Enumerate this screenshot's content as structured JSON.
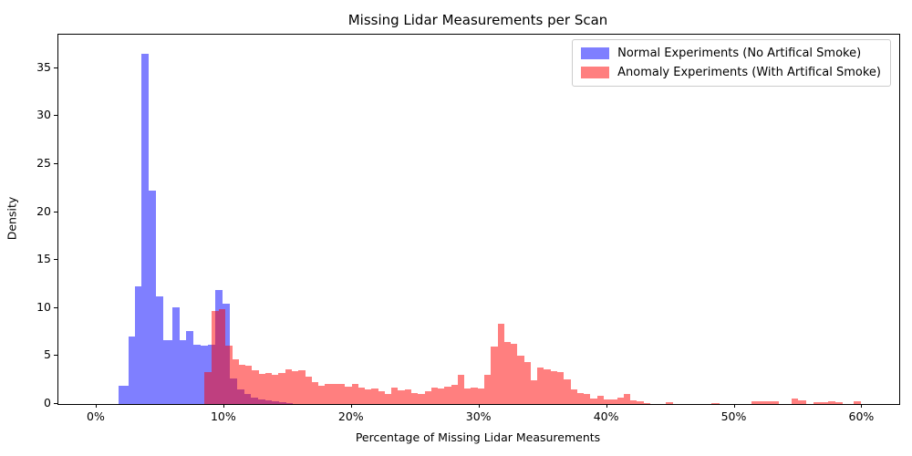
{
  "chart_data": {
    "type": "histogram",
    "title": "Missing Lidar Measurements per Scan",
    "xlabel": "Percentage of Missing Lidar Measurements",
    "ylabel": "Density",
    "xlim": [
      -3.0,
      62.9
    ],
    "ylim": [
      0,
      38.5
    ],
    "grid": false,
    "legend_position": "upper right",
    "x_ticks": [
      {
        "value": 0,
        "label": "0%"
      },
      {
        "value": 10,
        "label": "10%"
      },
      {
        "value": 20,
        "label": "20%"
      },
      {
        "value": 30,
        "label": "30%"
      },
      {
        "value": 40,
        "label": "40%"
      },
      {
        "value": 50,
        "label": "50%"
      },
      {
        "value": 60,
        "label": "60%"
      }
    ],
    "y_ticks": [
      0,
      5,
      10,
      15,
      20,
      25,
      30,
      35
    ],
    "series": [
      {
        "name": "Normal Experiments (No Artifical Smoke)",
        "color": "rgba(0,0,255,0.5)",
        "solid_color": "#8080f9",
        "bars": [
          [
            1.7,
            2.5,
            1.9
          ],
          [
            2.5,
            3.0,
            7.0
          ],
          [
            3.0,
            3.52,
            12.3
          ],
          [
            3.52,
            4.1,
            36.5
          ],
          [
            4.1,
            4.65,
            22.2
          ],
          [
            4.65,
            5.2,
            11.2
          ],
          [
            5.2,
            5.95,
            6.7
          ],
          [
            5.95,
            6.5,
            10.1
          ],
          [
            6.5,
            7.0,
            6.7
          ],
          [
            7.0,
            7.6,
            7.6
          ],
          [
            7.6,
            8.15,
            6.2
          ],
          [
            8.15,
            8.7,
            6.1
          ],
          [
            8.7,
            9.3,
            6.2
          ],
          [
            9.3,
            9.88,
            11.9
          ],
          [
            9.88,
            10.45,
            10.5
          ],
          [
            10.45,
            11.0,
            2.7
          ],
          [
            11.0,
            11.55,
            1.5
          ],
          [
            11.55,
            12.1,
            1.0
          ],
          [
            12.1,
            12.65,
            0.7
          ],
          [
            12.65,
            13.2,
            0.5
          ],
          [
            13.2,
            13.75,
            0.35
          ],
          [
            13.75,
            14.3,
            0.25
          ],
          [
            14.3,
            14.85,
            0.15
          ],
          [
            14.85,
            15.4,
            0.1
          ]
        ]
      },
      {
        "name": "Anomaly Experiments (With Artifical Smoke)",
        "color": "rgba(255,0,0,0.5)",
        "solid_color": "#fa8080",
        "bars": [
          [
            8.45,
            9.0,
            3.3
          ],
          [
            9.0,
            9.55,
            9.7
          ],
          [
            9.55,
            10.1,
            9.9
          ],
          [
            10.1,
            10.62,
            6.1
          ],
          [
            10.62,
            11.14,
            4.65
          ],
          [
            11.14,
            11.66,
            4.1
          ],
          [
            11.66,
            12.18,
            4.0
          ],
          [
            12.18,
            12.7,
            3.5
          ],
          [
            12.7,
            13.22,
            3.1
          ],
          [
            13.22,
            13.74,
            3.2
          ],
          [
            13.74,
            14.26,
            3.0
          ],
          [
            14.26,
            14.78,
            3.2
          ],
          [
            14.78,
            15.3,
            3.6
          ],
          [
            15.3,
            15.82,
            3.4
          ],
          [
            15.82,
            16.34,
            3.5
          ],
          [
            16.34,
            16.86,
            2.9
          ],
          [
            16.86,
            17.38,
            2.3
          ],
          [
            17.38,
            17.9,
            1.9
          ],
          [
            17.9,
            18.42,
            2.1
          ],
          [
            18.42,
            18.94,
            2.05
          ],
          [
            18.94,
            19.46,
            2.1
          ],
          [
            19.46,
            19.98,
            1.8
          ],
          [
            19.98,
            20.5,
            2.05
          ],
          [
            20.5,
            21.02,
            1.75
          ],
          [
            21.02,
            21.54,
            1.5
          ],
          [
            21.54,
            22.06,
            1.6
          ],
          [
            22.06,
            22.58,
            1.3
          ],
          [
            22.58,
            23.1,
            1.0
          ],
          [
            23.1,
            23.62,
            1.7
          ],
          [
            23.62,
            24.14,
            1.4
          ],
          [
            24.14,
            24.66,
            1.5
          ],
          [
            24.66,
            25.18,
            1.1
          ],
          [
            25.18,
            25.7,
            1.0
          ],
          [
            25.7,
            26.22,
            1.3
          ],
          [
            26.22,
            26.74,
            1.7
          ],
          [
            26.74,
            27.26,
            1.6
          ],
          [
            27.26,
            27.78,
            1.8
          ],
          [
            27.78,
            28.3,
            2.0
          ],
          [
            28.3,
            28.82,
            3.0
          ],
          [
            28.82,
            29.34,
            1.6
          ],
          [
            29.34,
            29.86,
            1.75
          ],
          [
            29.86,
            30.38,
            1.6
          ],
          [
            30.38,
            30.9,
            3.0
          ],
          [
            30.9,
            31.42,
            6.0
          ],
          [
            31.42,
            31.94,
            8.35
          ],
          [
            31.94,
            32.46,
            6.45
          ],
          [
            32.46,
            32.98,
            6.3
          ],
          [
            32.98,
            33.5,
            5.0
          ],
          [
            33.5,
            34.02,
            4.4
          ],
          [
            34.02,
            34.54,
            2.45
          ],
          [
            34.54,
            35.06,
            3.8
          ],
          [
            35.06,
            35.58,
            3.6
          ],
          [
            35.58,
            36.1,
            3.45
          ],
          [
            36.1,
            36.62,
            3.3
          ],
          [
            36.62,
            37.14,
            2.55
          ],
          [
            37.14,
            37.66,
            1.5
          ],
          [
            37.66,
            38.18,
            1.1
          ],
          [
            38.18,
            38.7,
            1.0
          ],
          [
            38.7,
            39.22,
            0.6
          ],
          [
            39.22,
            39.74,
            0.9
          ],
          [
            39.74,
            40.26,
            0.5
          ],
          [
            40.26,
            40.78,
            0.45
          ],
          [
            40.78,
            41.3,
            0.7
          ],
          [
            41.3,
            41.82,
            1.0
          ],
          [
            41.82,
            42.34,
            0.4
          ],
          [
            42.34,
            42.86,
            0.25
          ],
          [
            42.86,
            43.38,
            0.1
          ],
          [
            44.6,
            45.2,
            0.15
          ],
          [
            48.2,
            48.8,
            0.1
          ],
          [
            51.3,
            51.85,
            0.25
          ],
          [
            51.85,
            52.4,
            0.33
          ],
          [
            52.4,
            52.95,
            0.33
          ],
          [
            52.95,
            53.5,
            0.25
          ],
          [
            54.45,
            55.0,
            0.55
          ],
          [
            55.0,
            55.6,
            0.35
          ],
          [
            56.2,
            56.75,
            0.2
          ],
          [
            56.75,
            57.3,
            0.2
          ],
          [
            57.3,
            57.9,
            0.25
          ],
          [
            57.9,
            58.5,
            0.2
          ],
          [
            59.3,
            59.9,
            0.3
          ]
        ]
      }
    ]
  }
}
